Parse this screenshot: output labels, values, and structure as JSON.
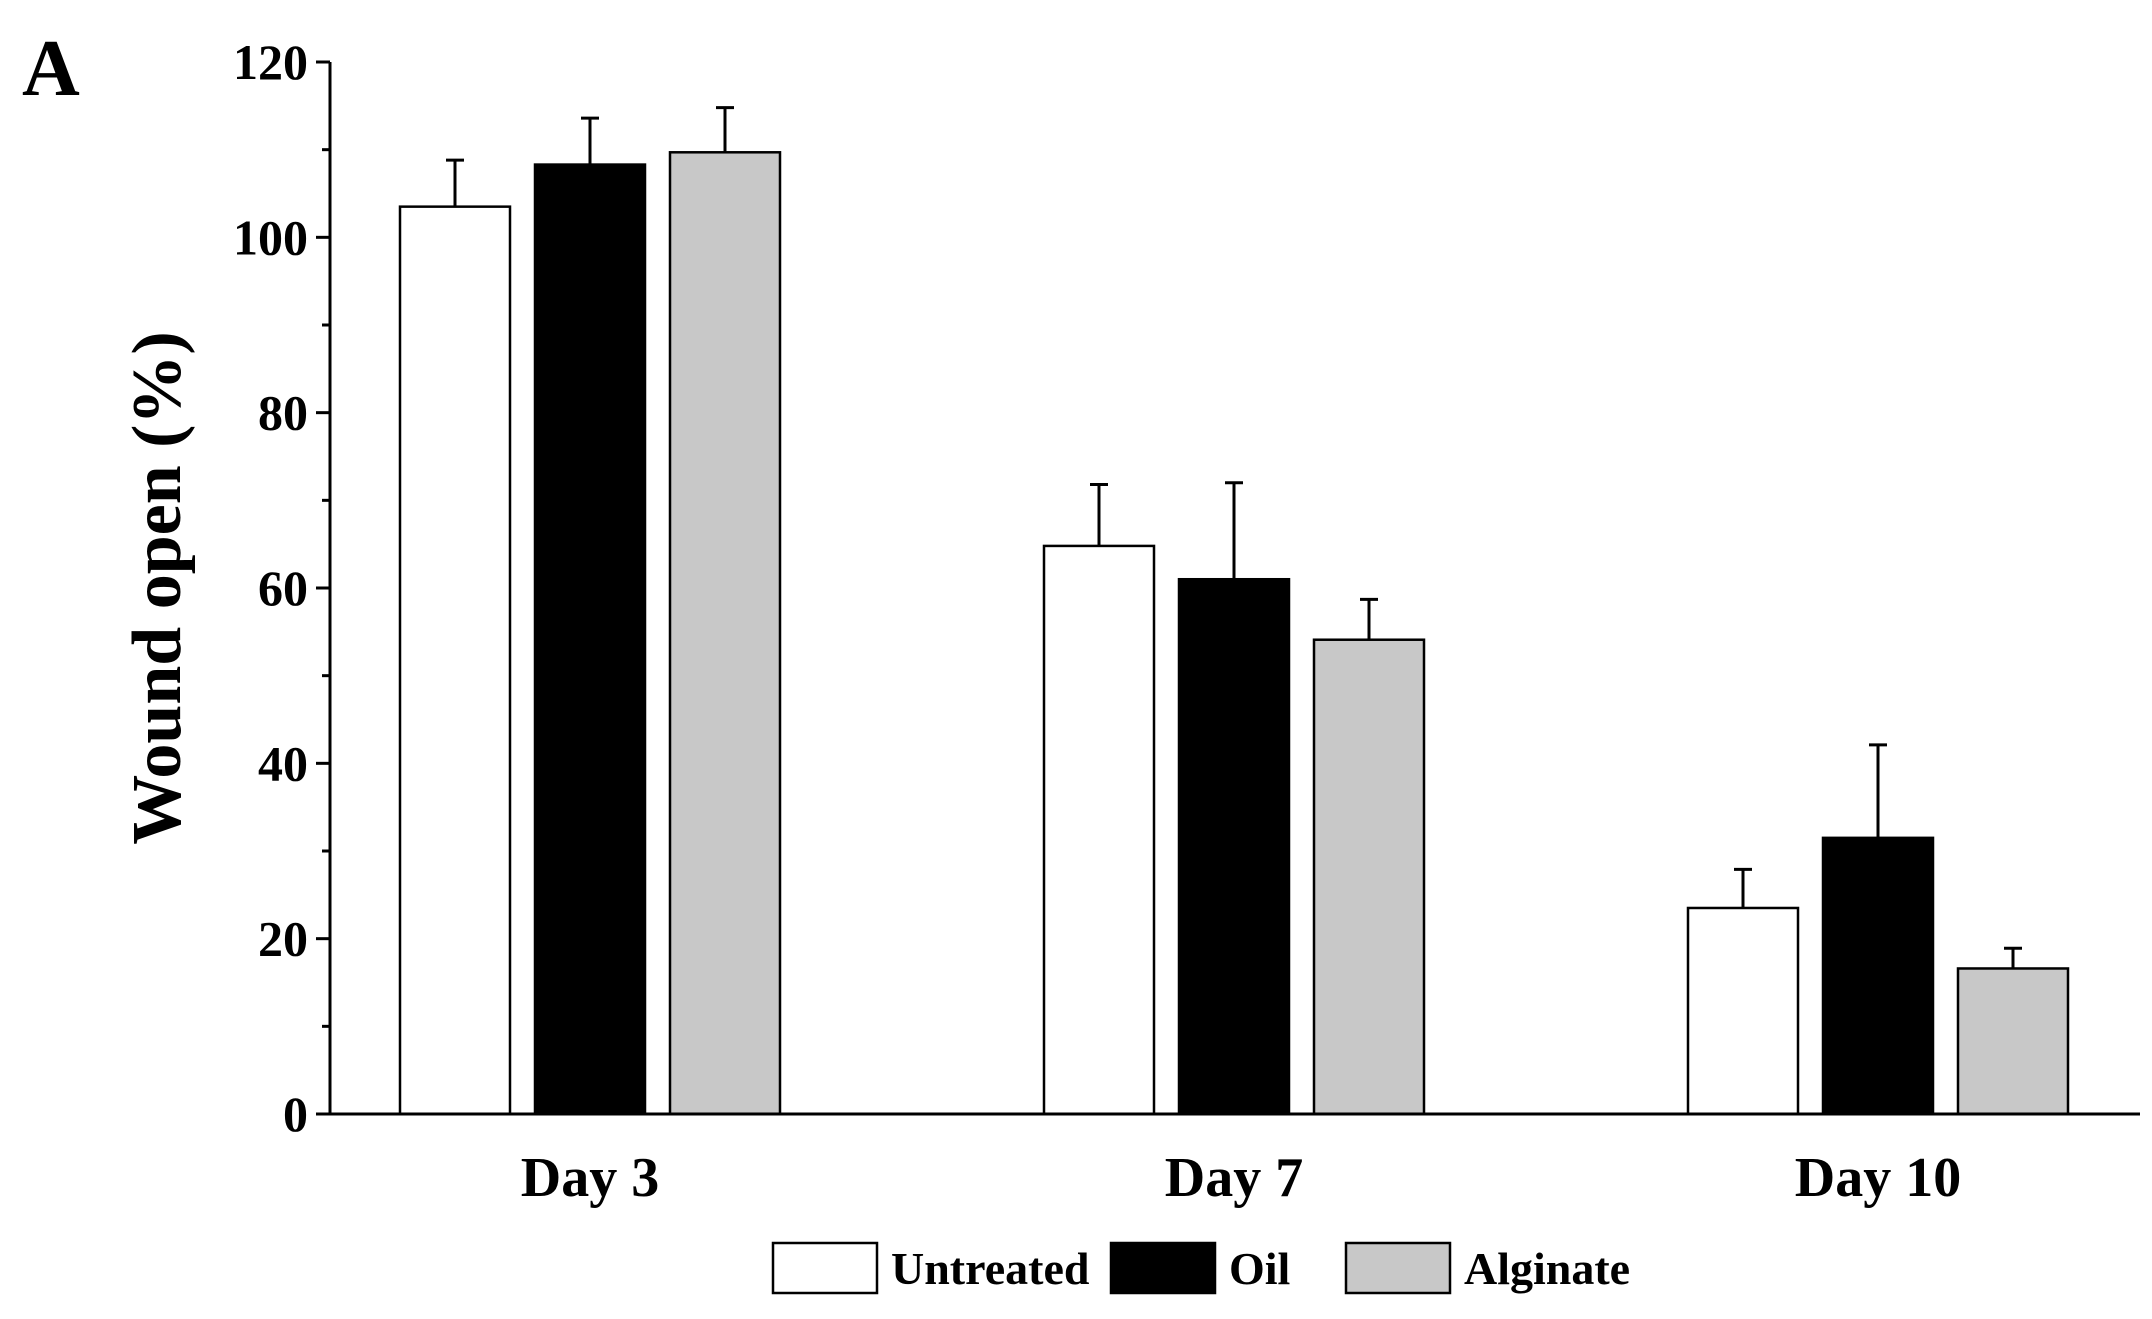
{
  "panel_label": "A",
  "chart_data": {
    "type": "bar",
    "title": "",
    "xlabel": "",
    "ylabel": "Wound open (%)",
    "ylim": [
      0,
      120
    ],
    "yticks": [
      0,
      20,
      40,
      60,
      80,
      100,
      120
    ],
    "grid": false,
    "legend_position": "bottom",
    "categories": [
      "Day 3",
      "Day 7",
      "Day 10"
    ],
    "series": [
      {
        "name": "Untreated",
        "color": "#ffffff",
        "values": [
          103.5,
          64.8,
          23.5
        ],
        "errors": [
          5.3,
          7.0,
          4.4
        ]
      },
      {
        "name": "Oil",
        "color": "#000000",
        "values": [
          108.3,
          61.0,
          31.5
        ],
        "errors": [
          5.3,
          11.0,
          10.6
        ]
      },
      {
        "name": "Alginate",
        "color": "#c8c8c8",
        "values": [
          109.7,
          54.1,
          16.6
        ],
        "errors": [
          5.1,
          4.6,
          2.3
        ]
      }
    ]
  }
}
